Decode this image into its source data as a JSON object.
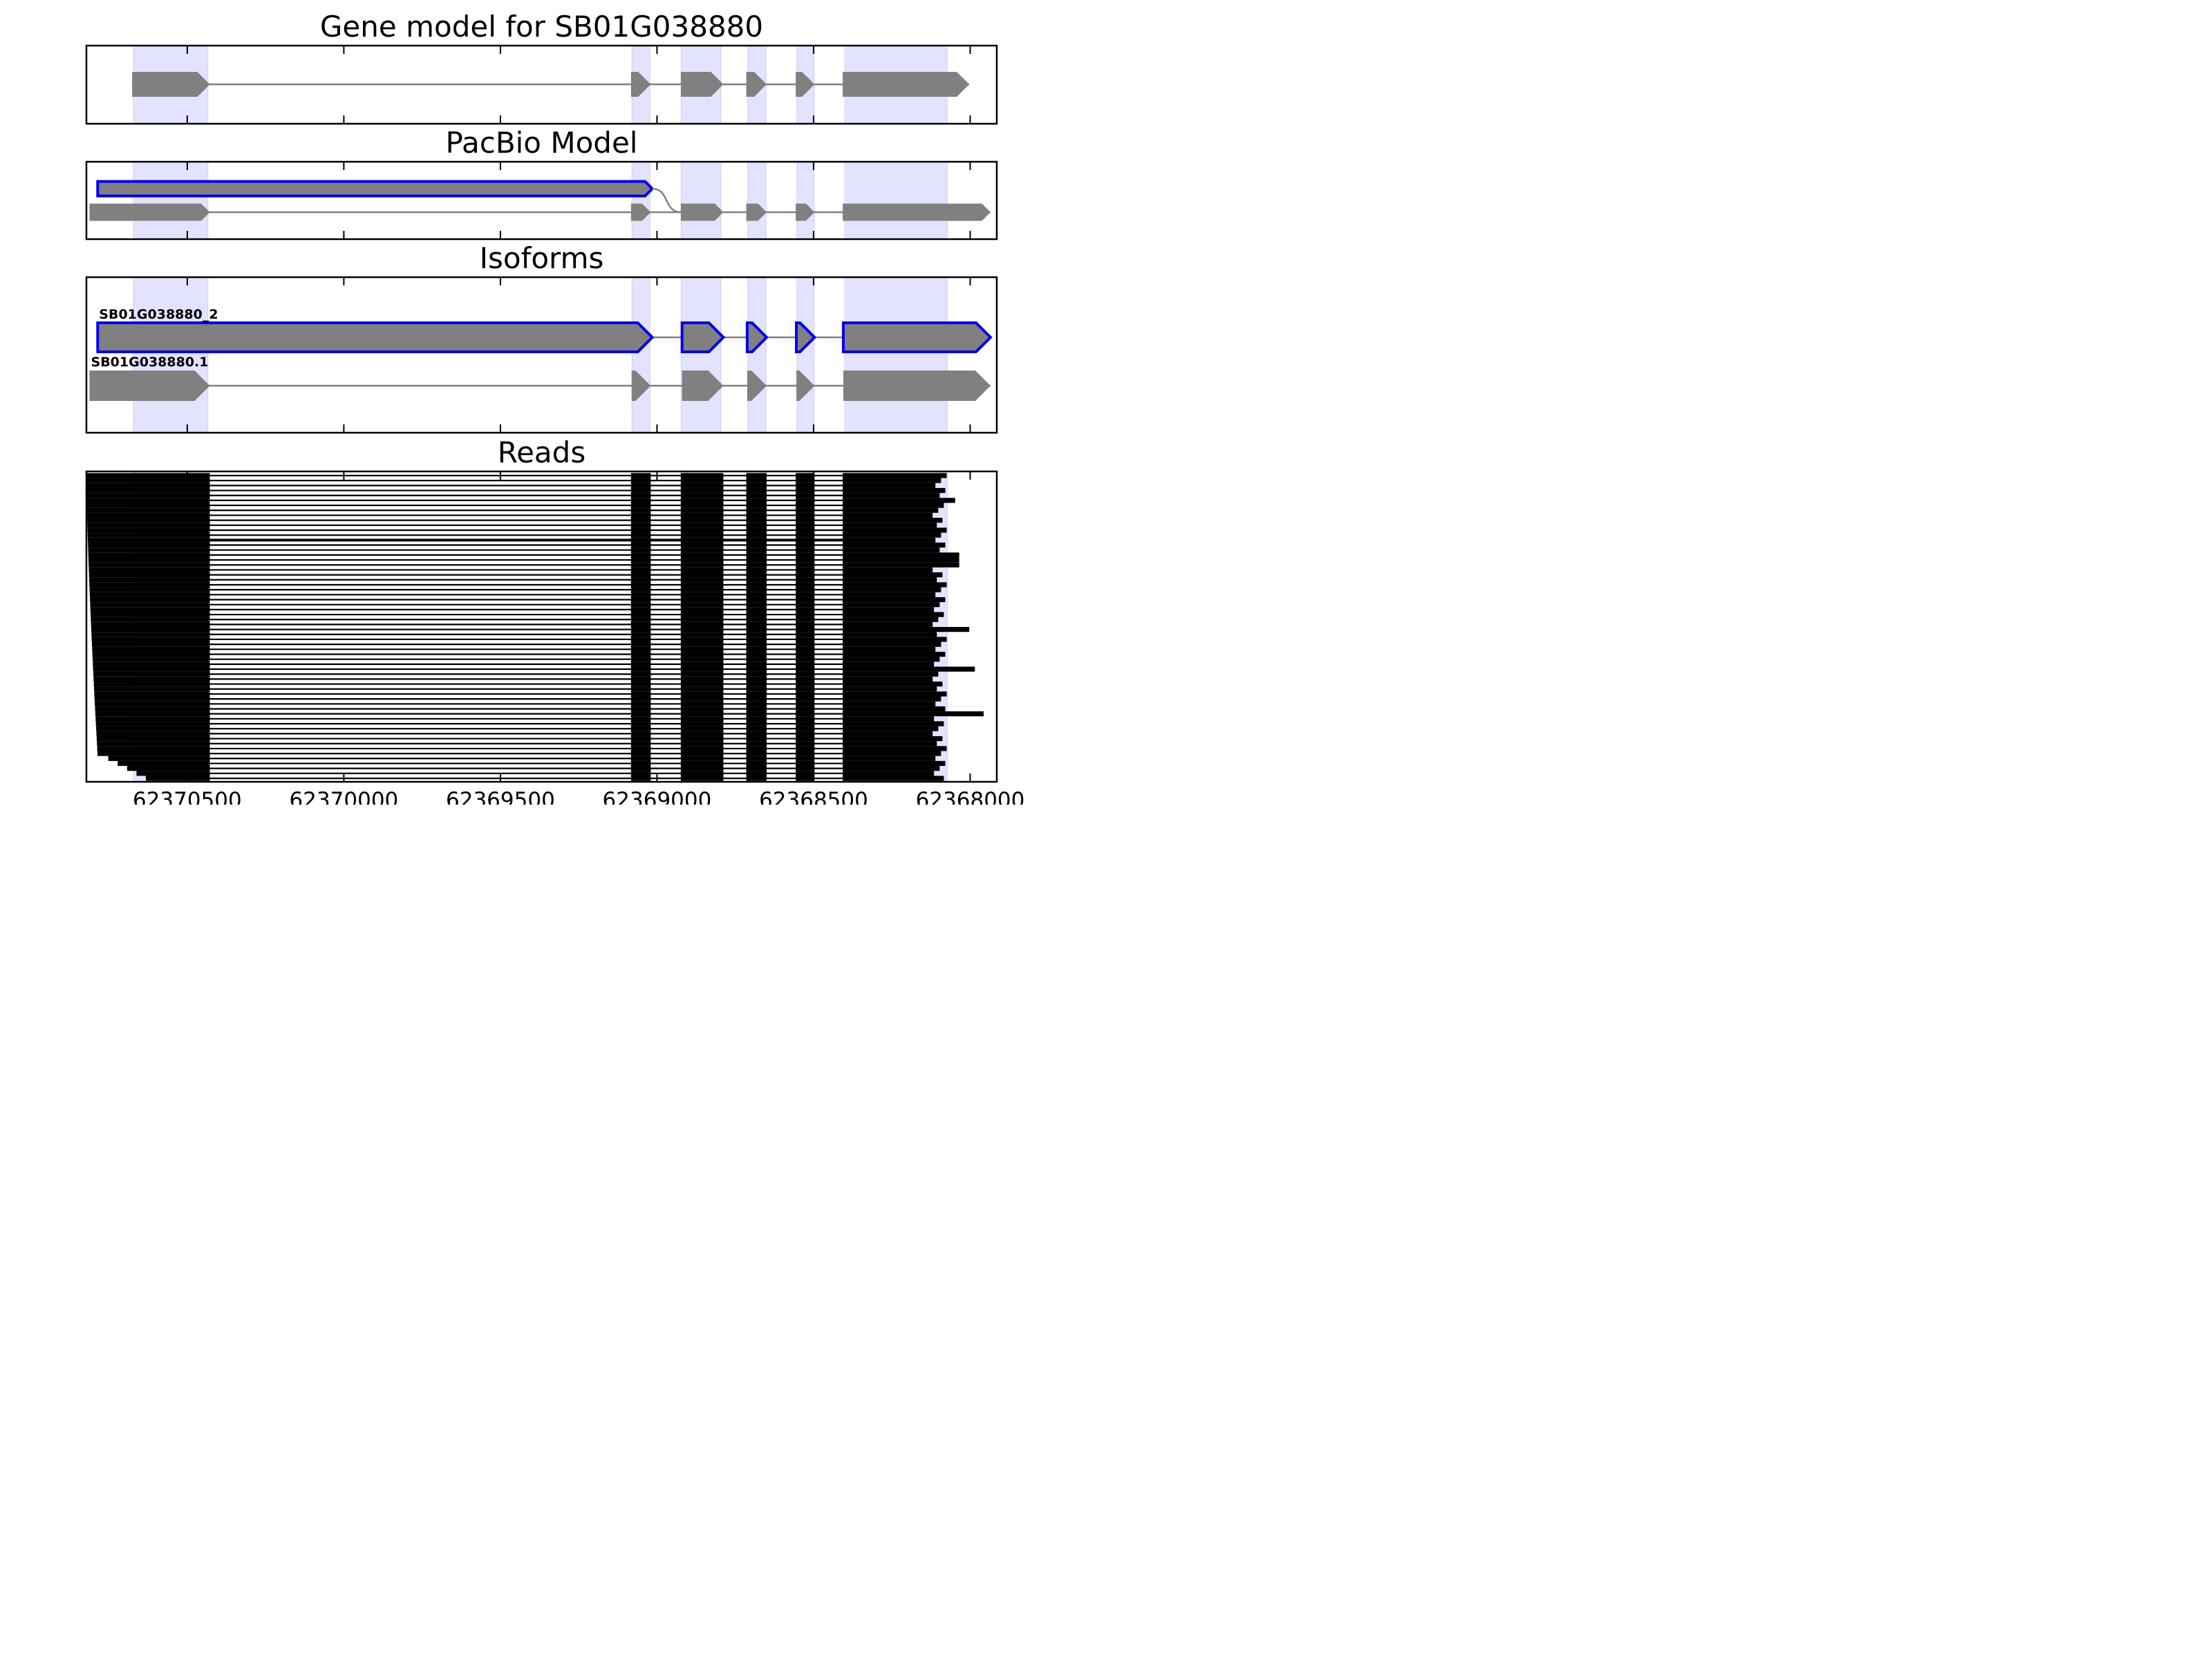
{
  "chart_data": {
    "type": "gene_track",
    "x_axis": {
      "lim": [
        62370822,
        62367915
      ],
      "reversed": true,
      "ticks": [
        62370500,
        62370000,
        62369500,
        62369000,
        62368500,
        62368000
      ],
      "tick_labels": [
        "62370500",
        "62370000",
        "62369500",
        "62369000",
        "62368500",
        "62368000"
      ]
    },
    "exon_highlights": [
      [
        62370672,
        62370434
      ],
      [
        62369080,
        62369022
      ],
      [
        62368923,
        62368796
      ],
      [
        62368710,
        62368652
      ],
      [
        62368553,
        62368498
      ],
      [
        62368400,
        62368073
      ]
    ],
    "panels": [
      {
        "key": "gene_model",
        "title": "Gene model for SB01G038880",
        "tracks": [
          {
            "label": "",
            "highlight": false,
            "exons": [
              [
                62370676,
                62370428
              ],
              [
                62369083,
                62369020
              ],
              [
                62368924,
                62368788
              ],
              [
                62368715,
                62368650
              ],
              [
                62368557,
                62368497
              ],
              [
                62368407,
                62368003
              ]
            ]
          }
        ]
      },
      {
        "key": "pacbio_model",
        "title": "PacBio Model",
        "tracks": [
          {
            "label": "",
            "highlight": true,
            "row": 0,
            "exons": [
              [
                62370786,
                62369015
              ]
            ],
            "join_to_row": 1
          },
          {
            "label": "",
            "highlight": false,
            "row": 1,
            "exons": [
              [
                62370812,
                62370428
              ],
              [
                62369083,
                62369020
              ],
              [
                62368924,
                62368788
              ],
              [
                62368715,
                62368650
              ],
              [
                62368557,
                62368497
              ],
              [
                62368407,
                62367935
              ]
            ]
          }
        ]
      },
      {
        "key": "isoforms",
        "title": "Isoforms",
        "tracks": [
          {
            "label": "SB01G038880_2",
            "highlight": true,
            "exons": [
              [
                62370786,
                62369015
              ],
              [
                62368920,
                62368788
              ],
              [
                62368712,
                62368650
              ],
              [
                62368555,
                62368497
              ],
              [
                62368405,
                62367935
              ]
            ]
          },
          {
            "label": "SB01G038880.1",
            "highlight": false,
            "exons": [
              [
                62370812,
                62370428
              ],
              [
                62369081,
                62369020
              ],
              [
                62368920,
                62368788
              ],
              [
                62368712,
                62368650
              ],
              [
                62368555,
                62368497
              ],
              [
                62368405,
                62367935
              ]
            ]
          }
        ]
      },
      {
        "key": "reads",
        "title": "Reads",
        "reads": {
          "count": 62,
          "start_range": [
            62370822,
            62370782
          ],
          "end_range": [
            62368120,
            62368075
          ],
          "extended_reads": [
            [
              5,
              62368048
            ],
            [
              16,
              62368035
            ],
            [
              17,
              62368035
            ],
            [
              18,
              62368035
            ],
            [
              31,
              62368003
            ],
            [
              39,
              62367985
            ],
            [
              48,
              62367957
            ]
          ],
          "genomic_read": 13
        }
      }
    ]
  }
}
